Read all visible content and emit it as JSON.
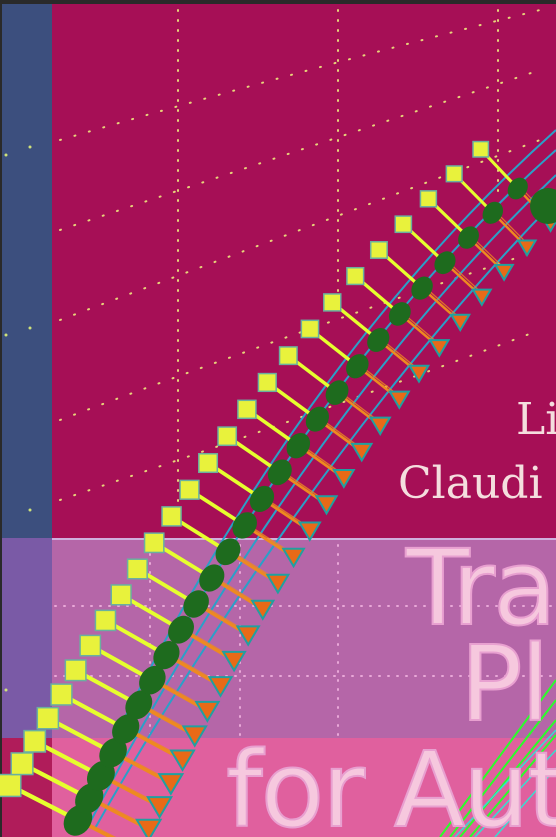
{
  "cover": {
    "author_line_1": "Li",
    "author_line_2": "Claudi",
    "title_line_1": "Tra",
    "title_line_2": "Pl",
    "title_line_3": "for Aut"
  },
  "colors": {
    "frame": "#2a2a2a",
    "left_strip_top": "#3c4f7e",
    "left_strip_bottom": "#7a5aa6",
    "magenta_panel": "#a60f56",
    "mid_band": "#b566a8",
    "bottom_band": "#e0609e",
    "bottom_left_block": "#b01c5a",
    "grid_dot": "#e7d47a",
    "band_dot": "#e9a8d8",
    "spine_green": "#1e6b1e",
    "triangle_orange": "#e86a17",
    "triangle_outline": "#20a0a0",
    "square_yellow": "#e8f23c",
    "ray_orange": "#ee8a20",
    "ray_yellow": "#e6ff2e",
    "spine_line": "#2aa0c8",
    "accent_green": "#2aff2a"
  },
  "icons": {
    "triangle_marker": "triangle-marker-icon",
    "square_marker": "square-marker-icon",
    "green_node": "green-node-icon"
  }
}
